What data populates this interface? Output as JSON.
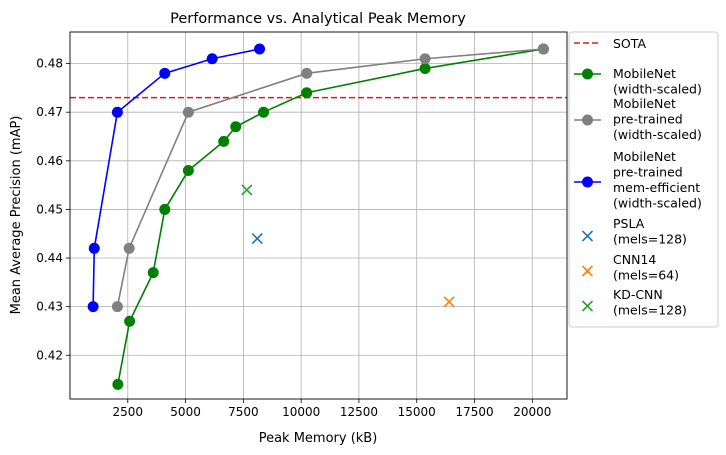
{
  "chart_data": {
    "type": "line",
    "title": "Performance vs. Analytical Peak Memory",
    "xlabel": "Peak Memory (kB)",
    "ylabel": "Mean Average Precision (mAP)",
    "xlim": [
      0,
      21500
    ],
    "ylim": [
      0.411,
      0.4865
    ],
    "xticks": [
      "2500",
      "5000",
      "7500",
      "10000",
      "12500",
      "15000",
      "17500",
      "20000"
    ],
    "yticks": [
      "0.42",
      "0.43",
      "0.44",
      "0.45",
      "0.46",
      "0.47",
      "0.48"
    ],
    "grid": true,
    "legend_position": "outside-right",
    "reference_line": {
      "label": "SOTA",
      "y": 0.473,
      "color": "#e31a1c",
      "style": "dashed"
    },
    "series": [
      {
        "name": "MobileNet\n(width-scaled)",
        "color": "#008000",
        "marker": "circle",
        "x": [
          2070,
          2580,
          3600,
          4100,
          5120,
          6650,
          7170,
          8370,
          10240,
          15360,
          20480
        ],
        "y": [
          0.414,
          0.427,
          0.437,
          0.45,
          0.458,
          0.464,
          0.467,
          0.47,
          0.474,
          0.479,
          0.483
        ]
      },
      {
        "name": "MobileNet\npre-trained\n(width-scaled)",
        "color": "#808080",
        "marker": "circle",
        "x": [
          2050,
          2560,
          5120,
          10240,
          15360,
          20480
        ],
        "y": [
          0.43,
          0.442,
          0.47,
          0.478,
          0.481,
          0.483
        ]
      },
      {
        "name": "MobileNet\npre-trained\nmem-efficient\n(width-scaled)",
        "color": "#0000ff",
        "marker": "circle",
        "x": [
          1000,
          1050,
          2050,
          4100,
          6150,
          8200
        ],
        "y": [
          0.43,
          0.442,
          0.47,
          0.478,
          0.481,
          0.483
        ]
      }
    ],
    "points": [
      {
        "name": "PSLA\n(mels=128)",
        "color": "#1f77b4",
        "marker": "x",
        "x": 8100,
        "y": 0.444
      },
      {
        "name": "CNN14\n(mels=64)",
        "color": "#ff7f0e",
        "marker": "x",
        "x": 16400,
        "y": 0.431
      },
      {
        "name": "KD-CNN\n(mels=128)",
        "color": "#2ca02c",
        "marker": "x",
        "x": 7650,
        "y": 0.454
      }
    ]
  }
}
